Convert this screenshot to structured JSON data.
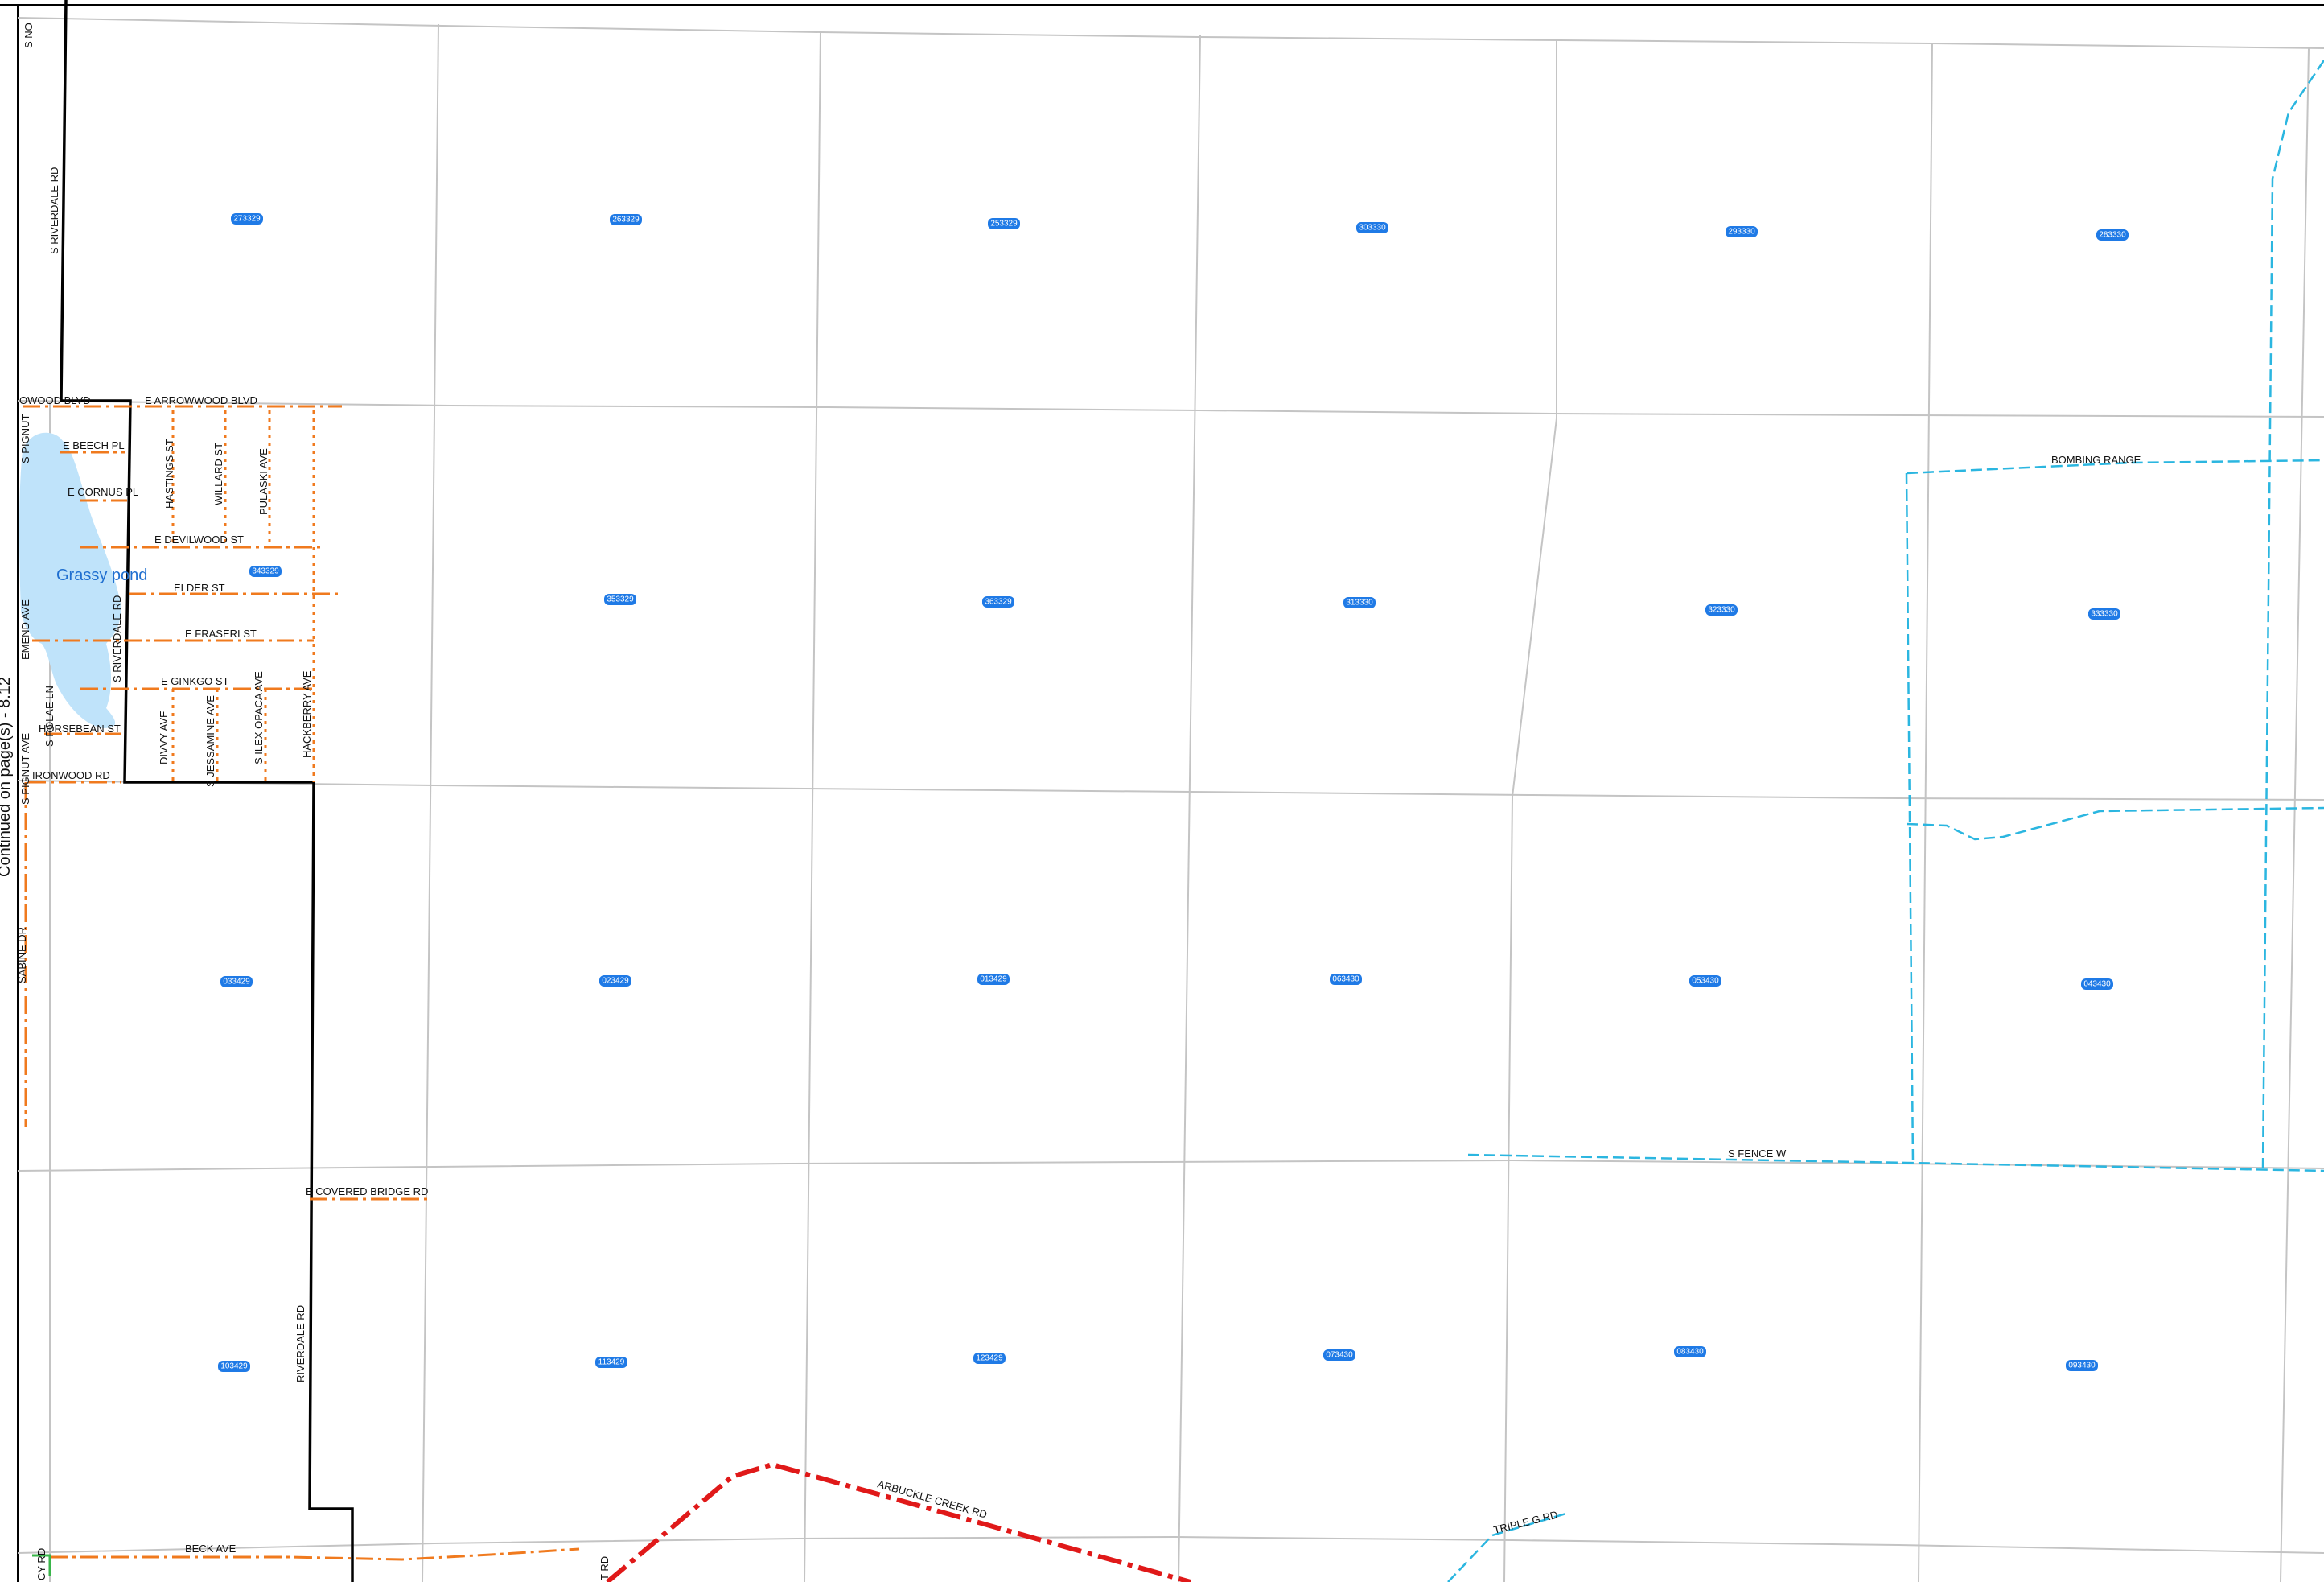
{
  "map": {
    "continuation_note": "Continued on page(s) - 8.12",
    "water_label": "Grassy pond",
    "colors": {
      "background": "#ffffff",
      "grid": "#c4c4c4",
      "boundary": "#000000",
      "local_road": "#f07a1e",
      "trail": "#2bb6e0",
      "highway": "#e01919",
      "water": "#bfe3fa",
      "parcel_label": "#1f7ae6"
    },
    "parcels": [
      "273329",
      "263329",
      "253329",
      "303330",
      "293330",
      "283330",
      "343329",
      "353329",
      "363329",
      "313330",
      "323330",
      "333330",
      "033429",
      "023429",
      "013429",
      "063430",
      "053430",
      "043430",
      "103429",
      "113429",
      "123429",
      "073430",
      "083430",
      "093430"
    ],
    "road_labels": {
      "arrowwood_w": "OWOOD BLVD",
      "arrowwood_e": "E ARROWWOOD BLVD",
      "beech": "E BEECH PL",
      "cornus": "E CORNUS PL",
      "devilwood": "E DEVILWOOD ST",
      "elder": "ELDER ST",
      "fraseri": "E FRASERI ST",
      "ginkgo": "E GINKGO ST",
      "horsebean": "HORSEBEAN ST",
      "ironwood": "IRONWOOD RD",
      "hastings": "HASTINGS ST",
      "willard": "WILLARD ST",
      "pulaski": "PULASKI AVE",
      "riverdale_n": "S RIVERDALE RD",
      "riverdale_mid": "S RIVERDALE RD",
      "riverdale_s": "RIVERDALE RD",
      "pignut_n": "S PIGNUT",
      "pignut_s": "S PIGNUT AVE",
      "emend": "EMEND AVE",
      "polae": "S POLAE LN",
      "divvy": "DIVVY AVE",
      "jessamine": "S JESSAMINE AVE",
      "ilex": "S ILEX OPACA AVE",
      "hackberry": "HACKBERRY AVE",
      "sabine": "SABINE DR",
      "top_corner": "S NO",
      "bombing": "BOMBING RANGE",
      "fence": "S FENCE W",
      "covered_bridge": "E COVERED BRIDGE RD",
      "beck": "BECK AVE",
      "arbuckle": "ARBUCKLE CREEK RD",
      "triple_g": "TRIPLE G RD",
      "bottom_left": "CY RD",
      "bottom_mid": "T RD"
    }
  }
}
